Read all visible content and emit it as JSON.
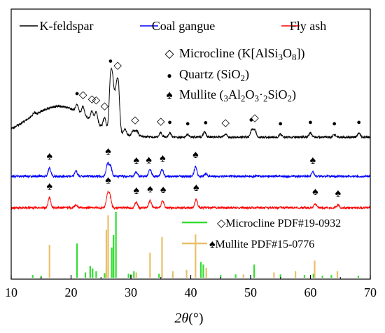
{
  "chart_data": {
    "type": "line",
    "xlabel": {
      "italic": "2θ",
      "unit": "(°)"
    },
    "xlim": [
      10,
      70
    ],
    "xticks": [
      "10",
      "20",
      "30",
      "40",
      "50",
      "60",
      "70"
    ],
    "grid": false,
    "legend_position": "top",
    "legend": [
      {
        "name": "K-feldspar",
        "color": "#000000"
      },
      {
        "name": "Coal gangue",
        "color": "#0000ff"
      },
      {
        "name": "Fly ash",
        "color": "#ff0000"
      }
    ],
    "phase_legend": [
      {
        "symbol": "◇",
        "label": "Microcline (K[AlSi3O8])"
      },
      {
        "symbol": "●",
        "label": "Quartz (SiO2)"
      },
      {
        "symbol": "♠",
        "label": "Mullite (3Al2O3·2SiO2)"
      }
    ],
    "series": [
      {
        "name": "K-feldspar",
        "color": "#000000",
        "baseline": 0.22,
        "peaks": [
          [
            13.8,
            0.02
          ],
          [
            21.0,
            0.05
          ],
          [
            22.0,
            0.06
          ],
          [
            23.5,
            0.07
          ],
          [
            24.2,
            0.08
          ],
          [
            25.6,
            0.07
          ],
          [
            26.6,
            0.36
          ],
          [
            27.0,
            0.3
          ],
          [
            27.5,
            0.25
          ],
          [
            27.9,
            0.33
          ],
          [
            29.0,
            0.04
          ],
          [
            30.4,
            0.04
          ],
          [
            31.0,
            0.04
          ],
          [
            35.0,
            0.03
          ],
          [
            36.5,
            0.03
          ],
          [
            39.5,
            0.02
          ],
          [
            42.3,
            0.04
          ],
          [
            45.8,
            0.02
          ],
          [
            50.2,
            0.05
          ],
          [
            50.7,
            0.05
          ],
          [
            55.0,
            0.02
          ],
          [
            60.0,
            0.03
          ],
          [
            64.0,
            0.02
          ],
          [
            68.1,
            0.03
          ]
        ],
        "symbols": [
          {
            "x": 21.0,
            "s": "●"
          },
          {
            "x": 22.0,
            "s": "◇"
          },
          {
            "x": 23.5,
            "s": "◇"
          },
          {
            "x": 24.2,
            "s": "◇"
          },
          {
            "x": 25.6,
            "s": "◇"
          },
          {
            "x": 26.6,
            "s": "●"
          },
          {
            "x": 27.8,
            "s": "◇"
          },
          {
            "x": 30.7,
            "s": "◇"
          },
          {
            "x": 35.0,
            "s": "◇"
          },
          {
            "x": 36.5,
            "s": "●"
          },
          {
            "x": 39.5,
            "s": "●"
          },
          {
            "x": 42.5,
            "s": "●"
          },
          {
            "x": 45.8,
            "s": "◇"
          },
          {
            "x": 50.1,
            "s": "●"
          },
          {
            "x": 50.7,
            "s": "◇"
          },
          {
            "x": 55.0,
            "s": "●"
          },
          {
            "x": 60.0,
            "s": "●"
          },
          {
            "x": 64.0,
            "s": "●"
          },
          {
            "x": 68.1,
            "s": "●"
          }
        ]
      },
      {
        "name": "Coal gangue",
        "color": "#0000ff",
        "baseline": 0.0,
        "peaks": [
          [
            16.4,
            0.06
          ],
          [
            20.8,
            0.04
          ],
          [
            26.1,
            0.09
          ],
          [
            26.6,
            0.07
          ],
          [
            30.9,
            0.03
          ],
          [
            33.2,
            0.05
          ],
          [
            35.2,
            0.05
          ],
          [
            40.8,
            0.07
          ],
          [
            42.5,
            0.02
          ],
          [
            60.4,
            0.03
          ]
        ],
        "symbols": [
          {
            "x": 16.4,
            "s": "♠"
          },
          {
            "x": 26.2,
            "s": "♠"
          },
          {
            "x": 30.9,
            "s": "♠"
          },
          {
            "x": 33.0,
            "s": "♠"
          },
          {
            "x": 35.3,
            "s": "♠"
          },
          {
            "x": 40.8,
            "s": "♠"
          },
          {
            "x": 60.4,
            "s": "♠"
          }
        ]
      },
      {
        "name": "Fly ash",
        "color": "#ff0000",
        "baseline": 0.0,
        "peaks": [
          [
            16.4,
            0.07
          ],
          [
            20.8,
            0.02
          ],
          [
            26.1,
            0.09
          ],
          [
            26.5,
            0.08
          ],
          [
            30.9,
            0.04
          ],
          [
            33.2,
            0.05
          ],
          [
            35.3,
            0.05
          ],
          [
            40.9,
            0.06
          ],
          [
            60.8,
            0.03
          ],
          [
            64.6,
            0.02
          ]
        ],
        "symbols": [
          {
            "x": 16.4,
            "s": "♠"
          },
          {
            "x": 26.2,
            "s": "♠"
          },
          {
            "x": 30.9,
            "s": "♠"
          },
          {
            "x": 33.2,
            "s": "♠"
          },
          {
            "x": 35.4,
            "s": "♠"
          },
          {
            "x": 40.9,
            "s": "♠"
          },
          {
            "x": 60.8,
            "s": "♠"
          },
          {
            "x": 64.6,
            "s": "♠"
          }
        ]
      }
    ],
    "reference_patterns": [
      {
        "label": "◇Microcline PDF#19-0932",
        "color": "#33dd33",
        "sticks": [
          [
            13.6,
            0.04
          ],
          [
            15.0,
            0.03
          ],
          [
            21.0,
            0.52
          ],
          [
            22.4,
            0.08
          ],
          [
            23.2,
            0.18
          ],
          [
            23.6,
            0.14
          ],
          [
            24.2,
            0.1
          ],
          [
            25.6,
            0.07
          ],
          [
            25.9,
            0.13
          ],
          [
            26.8,
            0.46
          ],
          [
            27.1,
            0.65
          ],
          [
            27.5,
            1.0
          ],
          [
            29.6,
            0.06
          ],
          [
            30.0,
            0.05
          ],
          [
            30.5,
            0.1
          ],
          [
            34.7,
            0.06
          ],
          [
            35.2,
            0.04
          ],
          [
            37.0,
            0.05
          ],
          [
            41.7,
            0.24
          ],
          [
            42.1,
            0.2
          ],
          [
            45.0,
            0.04
          ],
          [
            47.5,
            0.05
          ],
          [
            50.6,
            0.2
          ],
          [
            55.0,
            0.05
          ],
          [
            59.0,
            0.04
          ],
          [
            60.5,
            0.06
          ],
          [
            62.0,
            0.03
          ],
          [
            63.5,
            0.04
          ],
          [
            68.0,
            0.03
          ]
        ]
      },
      {
        "label": "♠Mullite PDF#15-0776",
        "color": "#e8c06a",
        "sticks": [
          [
            16.4,
            0.5
          ],
          [
            25.9,
            0.73
          ],
          [
            26.2,
            0.95
          ],
          [
            30.9,
            0.08
          ],
          [
            33.2,
            0.38
          ],
          [
            35.2,
            0.62
          ],
          [
            37.0,
            0.1
          ],
          [
            39.3,
            0.12
          ],
          [
            40.8,
            0.66
          ],
          [
            42.6,
            0.15
          ],
          [
            48.8,
            0.05
          ],
          [
            53.9,
            0.08
          ],
          [
            57.5,
            0.1
          ],
          [
            60.7,
            0.26
          ],
          [
            64.5,
            0.1
          ]
        ]
      }
    ]
  }
}
